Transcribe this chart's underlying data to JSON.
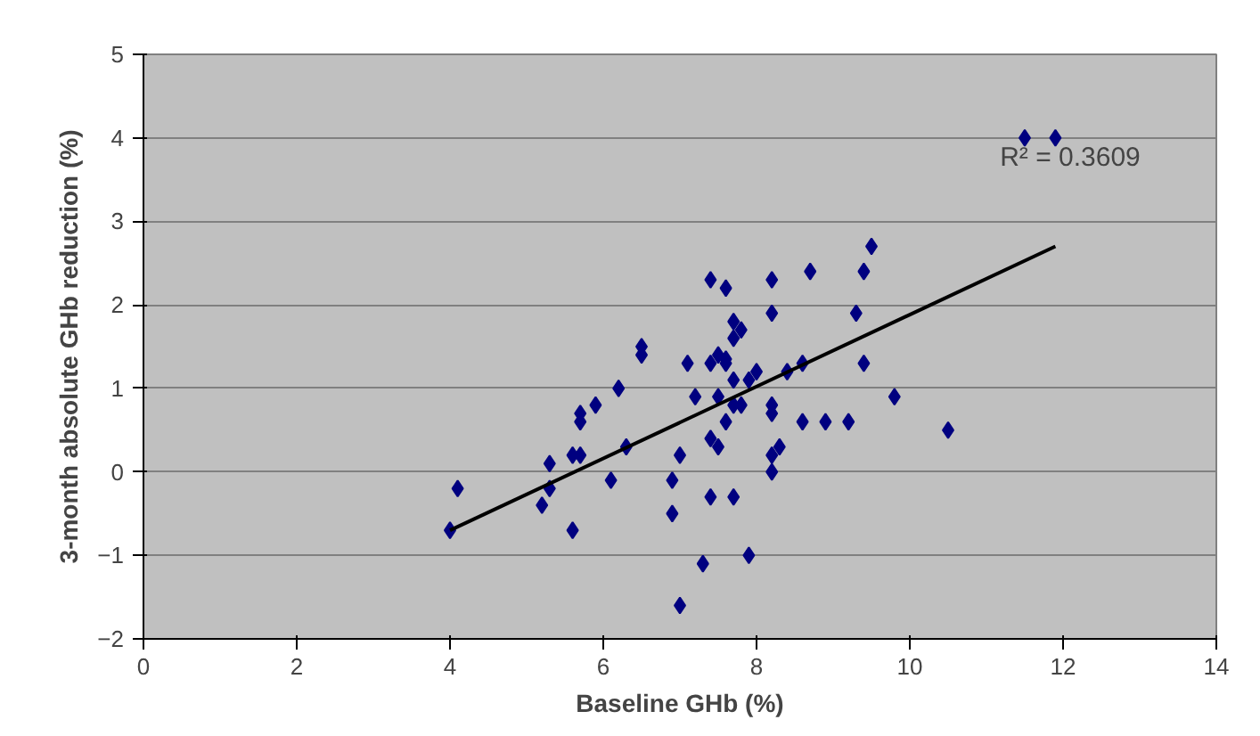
{
  "chart_data": {
    "type": "scatter",
    "xlabel": "Baseline GHb (%)",
    "ylabel": "3-month absolute GHb reduction (%)",
    "xlim": [
      0,
      14
    ],
    "ylim": [
      -2,
      5
    ],
    "xticks": [
      0,
      2,
      4,
      6,
      8,
      10,
      12,
      14
    ],
    "yticks": [
      -2,
      -1,
      0,
      1,
      2,
      3,
      4,
      5
    ],
    "grid": "y",
    "marker": "diamond",
    "annotations": [
      "R² = 0.3609"
    ],
    "series": [
      {
        "color": "#000080",
        "x": [
          4.0,
          4.1,
          5.2,
          5.3,
          5.3,
          5.6,
          5.6,
          5.7,
          5.7,
          5.7,
          5.9,
          6.1,
          6.2,
          6.3,
          6.5,
          6.5,
          6.9,
          6.9,
          7.0,
          7.0,
          7.1,
          7.2,
          7.3,
          7.4,
          7.4,
          7.4,
          7.4,
          7.5,
          7.5,
          7.5,
          7.6,
          7.6,
          7.6,
          7.6,
          7.7,
          7.7,
          7.7,
          7.7,
          7.7,
          7.8,
          7.8,
          7.9,
          7.9,
          8.0,
          8.2,
          8.2,
          8.2,
          8.2,
          8.2,
          8.2,
          8.3,
          8.4,
          8.6,
          8.6,
          8.7,
          8.9,
          9.2,
          9.3,
          9.4,
          9.4,
          9.5,
          9.8,
          10.5,
          11.5,
          11.9
        ],
        "values": [
          -0.7,
          -0.2,
          -0.4,
          0.1,
          -0.2,
          -0.7,
          0.2,
          0.2,
          0.6,
          0.7,
          0.8,
          -0.1,
          1.0,
          0.3,
          1.4,
          1.5,
          -0.1,
          -0.5,
          -1.6,
          0.2,
          1.3,
          0.9,
          -1.1,
          -0.3,
          2.3,
          0.4,
          1.3,
          1.4,
          0.3,
          0.9,
          2.2,
          0.6,
          1.3,
          1.35,
          1.8,
          1.6,
          1.1,
          -0.3,
          0.8,
          1.7,
          0.8,
          -1.0,
          1.1,
          1.2,
          2.3,
          1.9,
          0.8,
          0.7,
          0.0,
          0.2,
          0.3,
          1.2,
          1.3,
          0.6,
          2.4,
          0.6,
          0.6,
          1.9,
          2.4,
          1.3,
          2.7,
          0.9,
          0.5,
          4.0,
          4.0
        ]
      },
      {
        "type": "line",
        "color": "#000000",
        "marker": "none",
        "x": [
          4.0,
          11.9
        ],
        "values": [
          -0.7,
          2.7
        ]
      }
    ]
  }
}
